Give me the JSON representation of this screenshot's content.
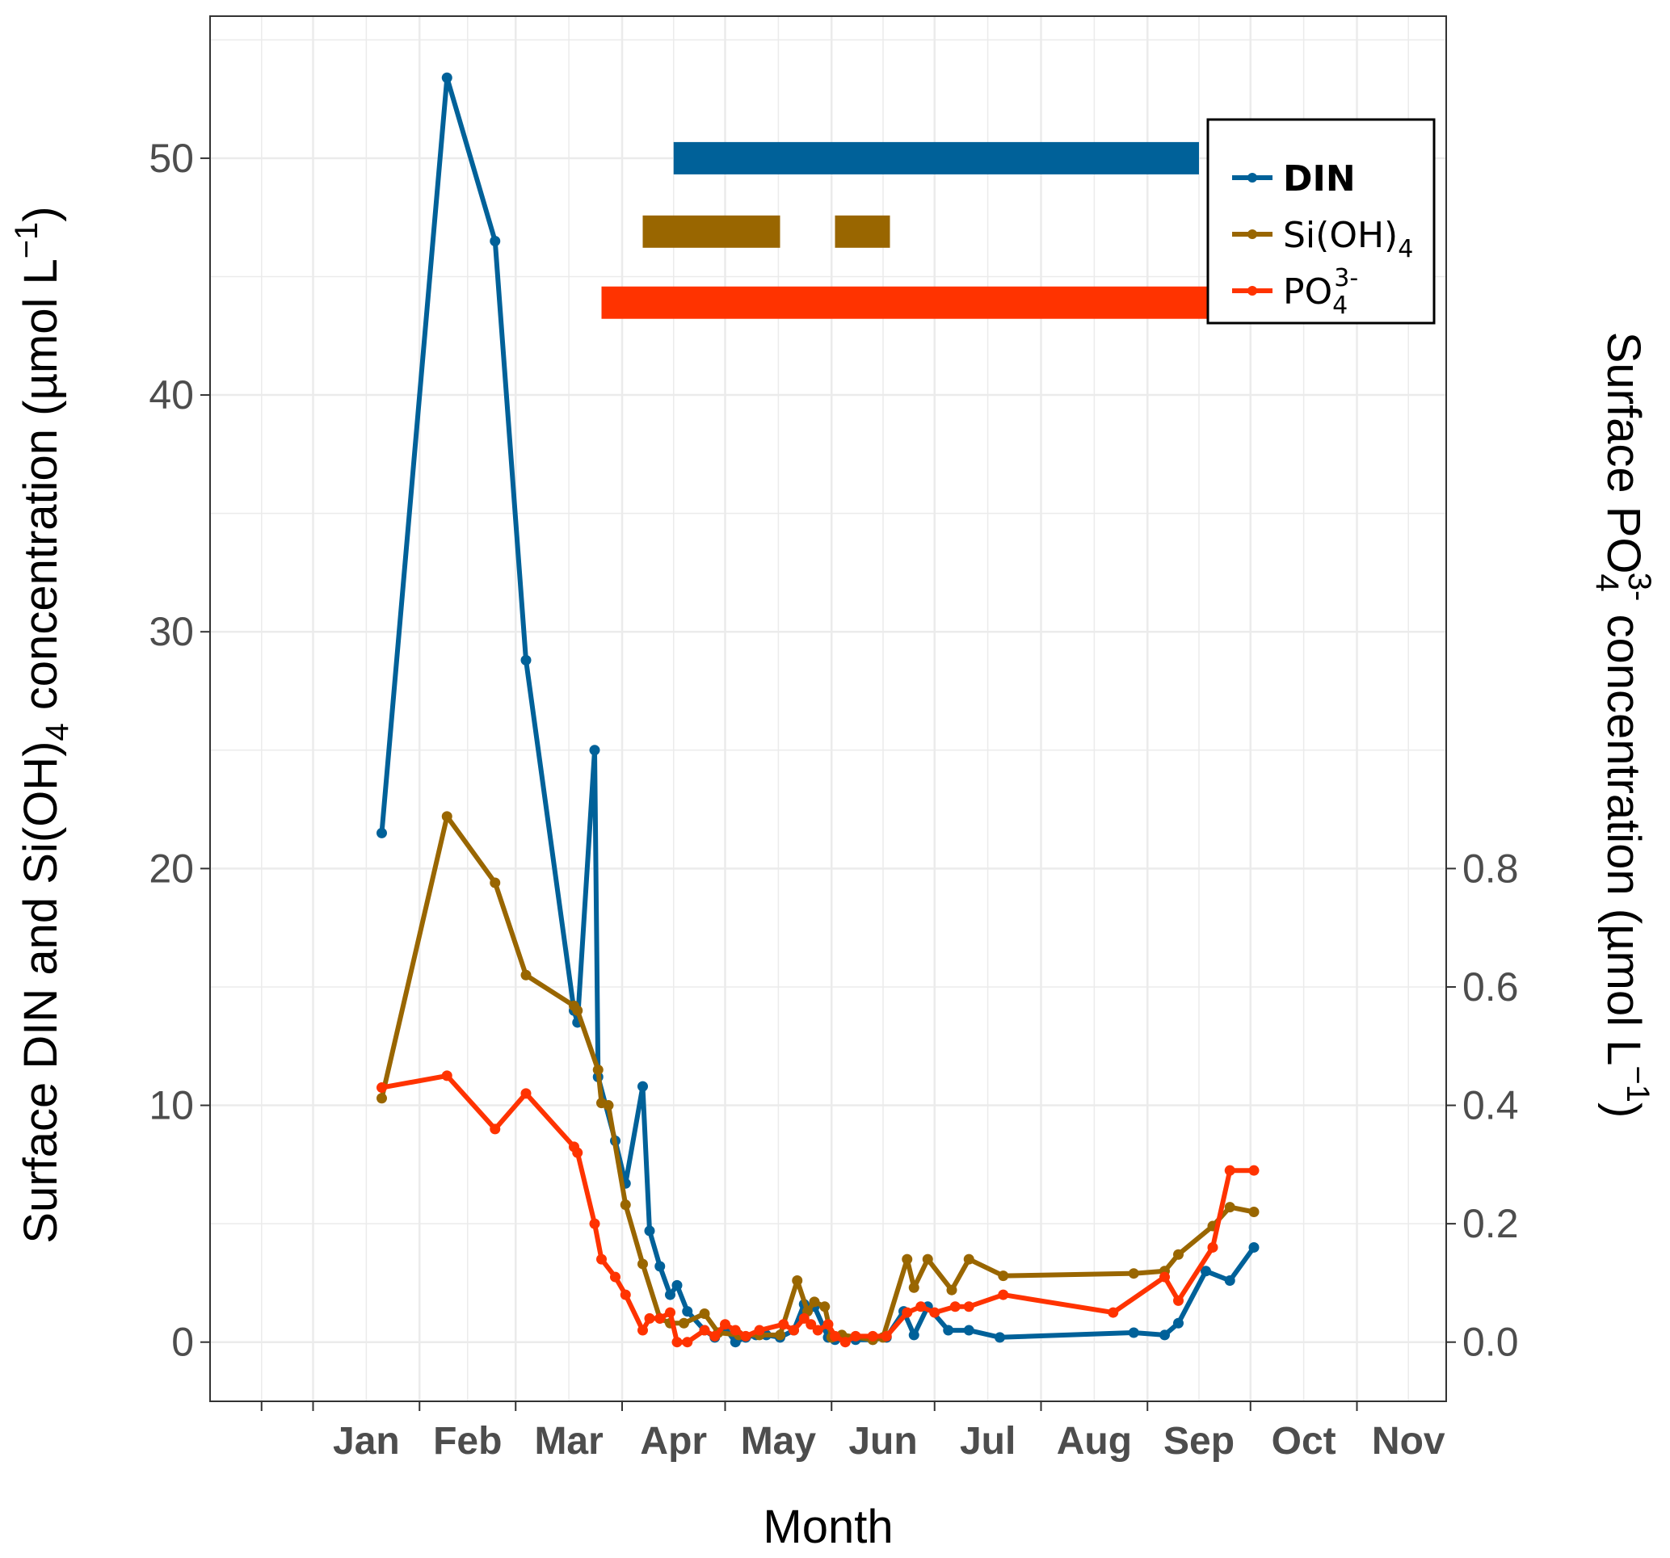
{
  "chart_data": {
    "type": "line",
    "title": "",
    "xlabel": "Month",
    "ylabel": {
      "pre": "Surface DIN and Si(OH)",
      "sub": "4",
      "post": " concentration (µmol L",
      "sup": "−1",
      "end": ")"
    },
    "y2label": {
      "pre": "Surface PO",
      "sub": "4",
      "sup": "3-",
      "post": " concentration (µmol L",
      "sup2": "−1",
      "end": ")"
    },
    "x_axis": {
      "unit": "day of year",
      "xlim": [
        -30,
        330
      ],
      "month_ticks": [
        0,
        31,
        59,
        90,
        120,
        151,
        181,
        212,
        243,
        273,
        304,
        334
      ],
      "month_labels": [
        "Jan",
        "Feb",
        "Mar",
        "Apr",
        "May",
        "Jun",
        "Jul",
        "Aug",
        "Sep",
        "Oct",
        "Nov"
      ],
      "month_label_positions": [
        15.5,
        45,
        74.5,
        105,
        135.5,
        166,
        196.5,
        227.5,
        258,
        288.5,
        319
      ]
    },
    "y_left": {
      "ylim": [
        -2.5,
        56
      ],
      "ticks": [
        0,
        10,
        20,
        30,
        40,
        50
      ]
    },
    "y_right": {
      "ylim": [
        -0.1,
        2.24
      ],
      "ticks": [
        0.0,
        0.2,
        0.4,
        0.6,
        0.8
      ],
      "tick_labels": [
        "0.0",
        "0.2",
        "0.4",
        "0.6",
        "0.8"
      ]
    },
    "series": [
      {
        "name": "DIN",
        "color": "#006199",
        "axis": "left",
        "x": [
          20,
          39,
          53,
          62,
          76,
          77,
          82,
          83,
          88,
          91,
          96,
          98,
          101,
          104,
          106,
          109,
          114,
          117,
          120,
          123,
          126,
          129,
          132,
          136,
          140,
          143,
          146,
          150,
          152,
          155,
          158,
          163,
          167,
          172,
          175,
          179,
          185,
          191,
          200,
          239,
          248,
          252,
          260,
          267,
          274
        ],
        "y": [
          21.5,
          53.4,
          46.5,
          28.8,
          14.0,
          13.5,
          25.0,
          11.2,
          8.5,
          6.7,
          10.8,
          4.7,
          3.2,
          2.0,
          2.4,
          1.3,
          0.5,
          0.2,
          0.6,
          0.0,
          0.2,
          0.3,
          0.3,
          0.2,
          0.5,
          1.6,
          1.5,
          0.2,
          0.1,
          0.1,
          0.1,
          0.1,
          0.2,
          1.3,
          0.3,
          1.5,
          0.5,
          0.5,
          0.2,
          0.4,
          0.3,
          0.8,
          3.0,
          2.6,
          4.0
        ]
      },
      {
        "name": {
          "pre": "Si(OH)",
          "sub": "4"
        },
        "color": "#996600",
        "axis": "left",
        "x": [
          20,
          39,
          53,
          62,
          76,
          77,
          83,
          84,
          86,
          91,
          96,
          101,
          104,
          108,
          114,
          118,
          124,
          130,
          136,
          141,
          144,
          146,
          149,
          151,
          154,
          163,
          166,
          173,
          175,
          179,
          186,
          191,
          201,
          239,
          248,
          252,
          262,
          267,
          274
        ],
        "y": [
          10.3,
          22.2,
          19.4,
          15.5,
          14.2,
          14.0,
          11.5,
          10.1,
          10.0,
          5.8,
          3.3,
          1.0,
          0.8,
          0.8,
          1.2,
          0.4,
          0.3,
          0.3,
          0.3,
          2.6,
          1.3,
          1.7,
          1.5,
          0.2,
          0.3,
          0.1,
          0.2,
          3.5,
          2.3,
          3.5,
          2.2,
          3.5,
          2.8,
          2.9,
          3.0,
          3.7,
          4.9,
          5.7,
          5.5
        ]
      },
      {
        "name": {
          "pre": "PO",
          "sub": "4",
          "sup": "3-"
        },
        "color": "#ff3300",
        "axis": "right",
        "x": [
          20,
          39,
          53,
          62,
          76,
          77,
          82,
          84,
          88,
          91,
          96,
          98,
          101,
          104,
          106,
          109,
          114,
          117,
          120,
          123,
          126,
          130,
          137,
          140,
          143,
          145,
          147,
          150,
          152,
          155,
          158,
          163,
          167,
          173,
          177,
          181,
          187,
          191,
          201,
          233,
          248,
          252,
          262,
          267,
          274
        ],
        "y": [
          0.43,
          0.45,
          0.36,
          0.42,
          0.33,
          0.32,
          0.2,
          0.14,
          0.11,
          0.08,
          0.02,
          0.04,
          0.04,
          0.05,
          0.0,
          0.0,
          0.02,
          0.01,
          0.03,
          0.02,
          0.01,
          0.02,
          0.03,
          0.02,
          0.04,
          0.03,
          0.02,
          0.03,
          0.01,
          0.0,
          0.01,
          0.01,
          0.01,
          0.05,
          0.06,
          0.05,
          0.06,
          0.06,
          0.08,
          0.05,
          0.11,
          0.07,
          0.16,
          0.29,
          0.29
        ]
      }
    ],
    "bars": [
      {
        "series": "DIN",
        "color": "#006199",
        "y": 50,
        "x_ranges": [
          [
            105,
            258
          ]
        ]
      },
      {
        "series": "Si(OH)4",
        "color": "#996600",
        "y": 46.9,
        "x_ranges": [
          [
            96,
            136
          ],
          [
            152,
            168
          ]
        ]
      },
      {
        "series": "PO4",
        "color": "#ff3300",
        "y": 43.9,
        "x_ranges": [
          [
            84,
            264
          ]
        ]
      }
    ],
    "legend": {
      "position": "top-right"
    },
    "grid": true
  }
}
